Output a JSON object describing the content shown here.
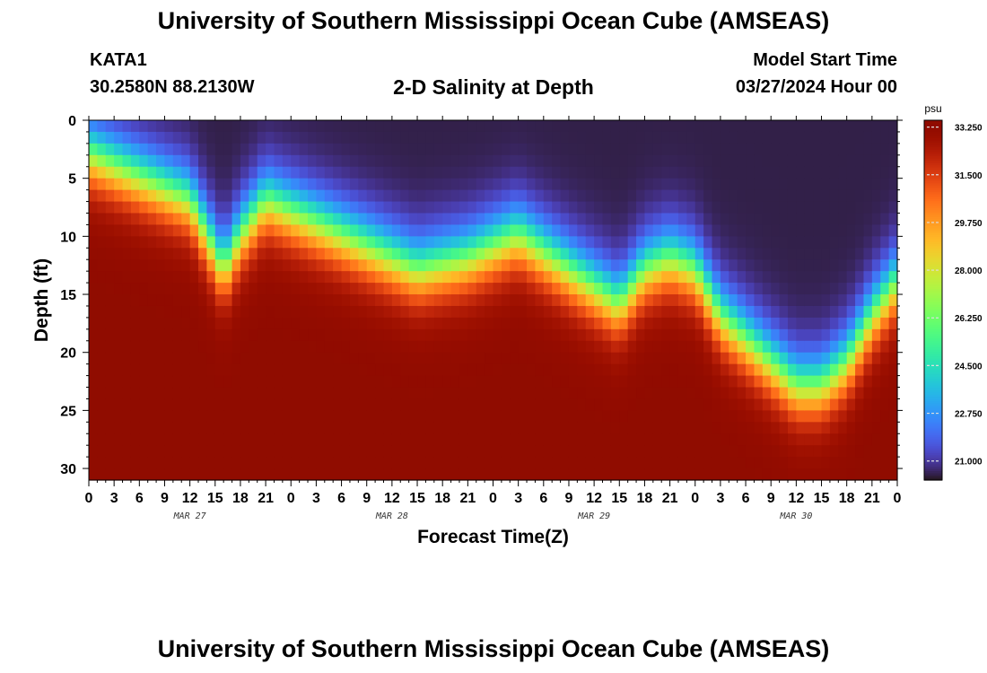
{
  "header": {
    "title": "University of Southern Mississippi Ocean Cube (AMSEAS)",
    "station": "KATA1",
    "coords": "30.2580N  88.2130W",
    "subtitle": "2-D Salinity at Depth",
    "start_label": "Model Start Time",
    "start_value": "03/27/2024 Hour 00"
  },
  "footer": {
    "title": "University of Southern Mississippi Ocean Cube (AMSEAS)"
  },
  "chart_data": {
    "type": "heatmap",
    "title": "2-D Salinity at Depth",
    "xlabel": "Forecast Time(Z)",
    "ylabel": "Depth (ft)",
    "x_ticks": [
      "0",
      "3",
      "6",
      "9",
      "12",
      "15",
      "18",
      "21",
      "0",
      "3",
      "6",
      "9",
      "12",
      "15",
      "18",
      "21",
      "0",
      "3",
      "6",
      "9",
      "12",
      "15",
      "18",
      "21",
      "0",
      "3",
      "6",
      "9",
      "12",
      "15",
      "18",
      "21",
      "0"
    ],
    "x_range_hours": [
      0,
      96
    ],
    "day_labels": [
      {
        "label": "MAR 27",
        "hour": 12
      },
      {
        "label": "MAR 28",
        "hour": 36
      },
      {
        "label": "MAR 29",
        "hour": 60
      },
      {
        "label": "MAR 30",
        "hour": 84
      }
    ],
    "y_ticks": [
      0,
      5,
      10,
      15,
      20,
      25,
      30
    ],
    "y_range": [
      0,
      31
    ],
    "y_inverted": true,
    "colorbar": {
      "unit": "psu",
      "ticks": [
        "33.250",
        "31.500",
        "29.750",
        "28.000",
        "26.250",
        "24.500",
        "22.750",
        "21.000"
      ],
      "min": 20.3,
      "max": 33.5,
      "colormap": "turbo"
    },
    "isoline_28psu_depth_ft": {
      "hours": [
        0,
        6,
        12,
        16,
        18,
        21,
        27,
        33,
        39,
        45,
        51,
        57,
        63,
        66,
        69,
        72,
        75,
        81,
        84,
        87,
        90,
        93,
        96
      ],
      "depth": [
        3,
        5,
        7,
        13,
        10,
        7,
        9,
        11,
        13,
        12,
        10,
        13,
        16,
        13,
        12,
        13,
        17,
        21,
        23,
        23,
        21,
        17,
        14
      ]
    },
    "halocline_width_ft": 6.5,
    "surface_salinity_min": 20.5,
    "deep_salinity_max": 33.2
  }
}
